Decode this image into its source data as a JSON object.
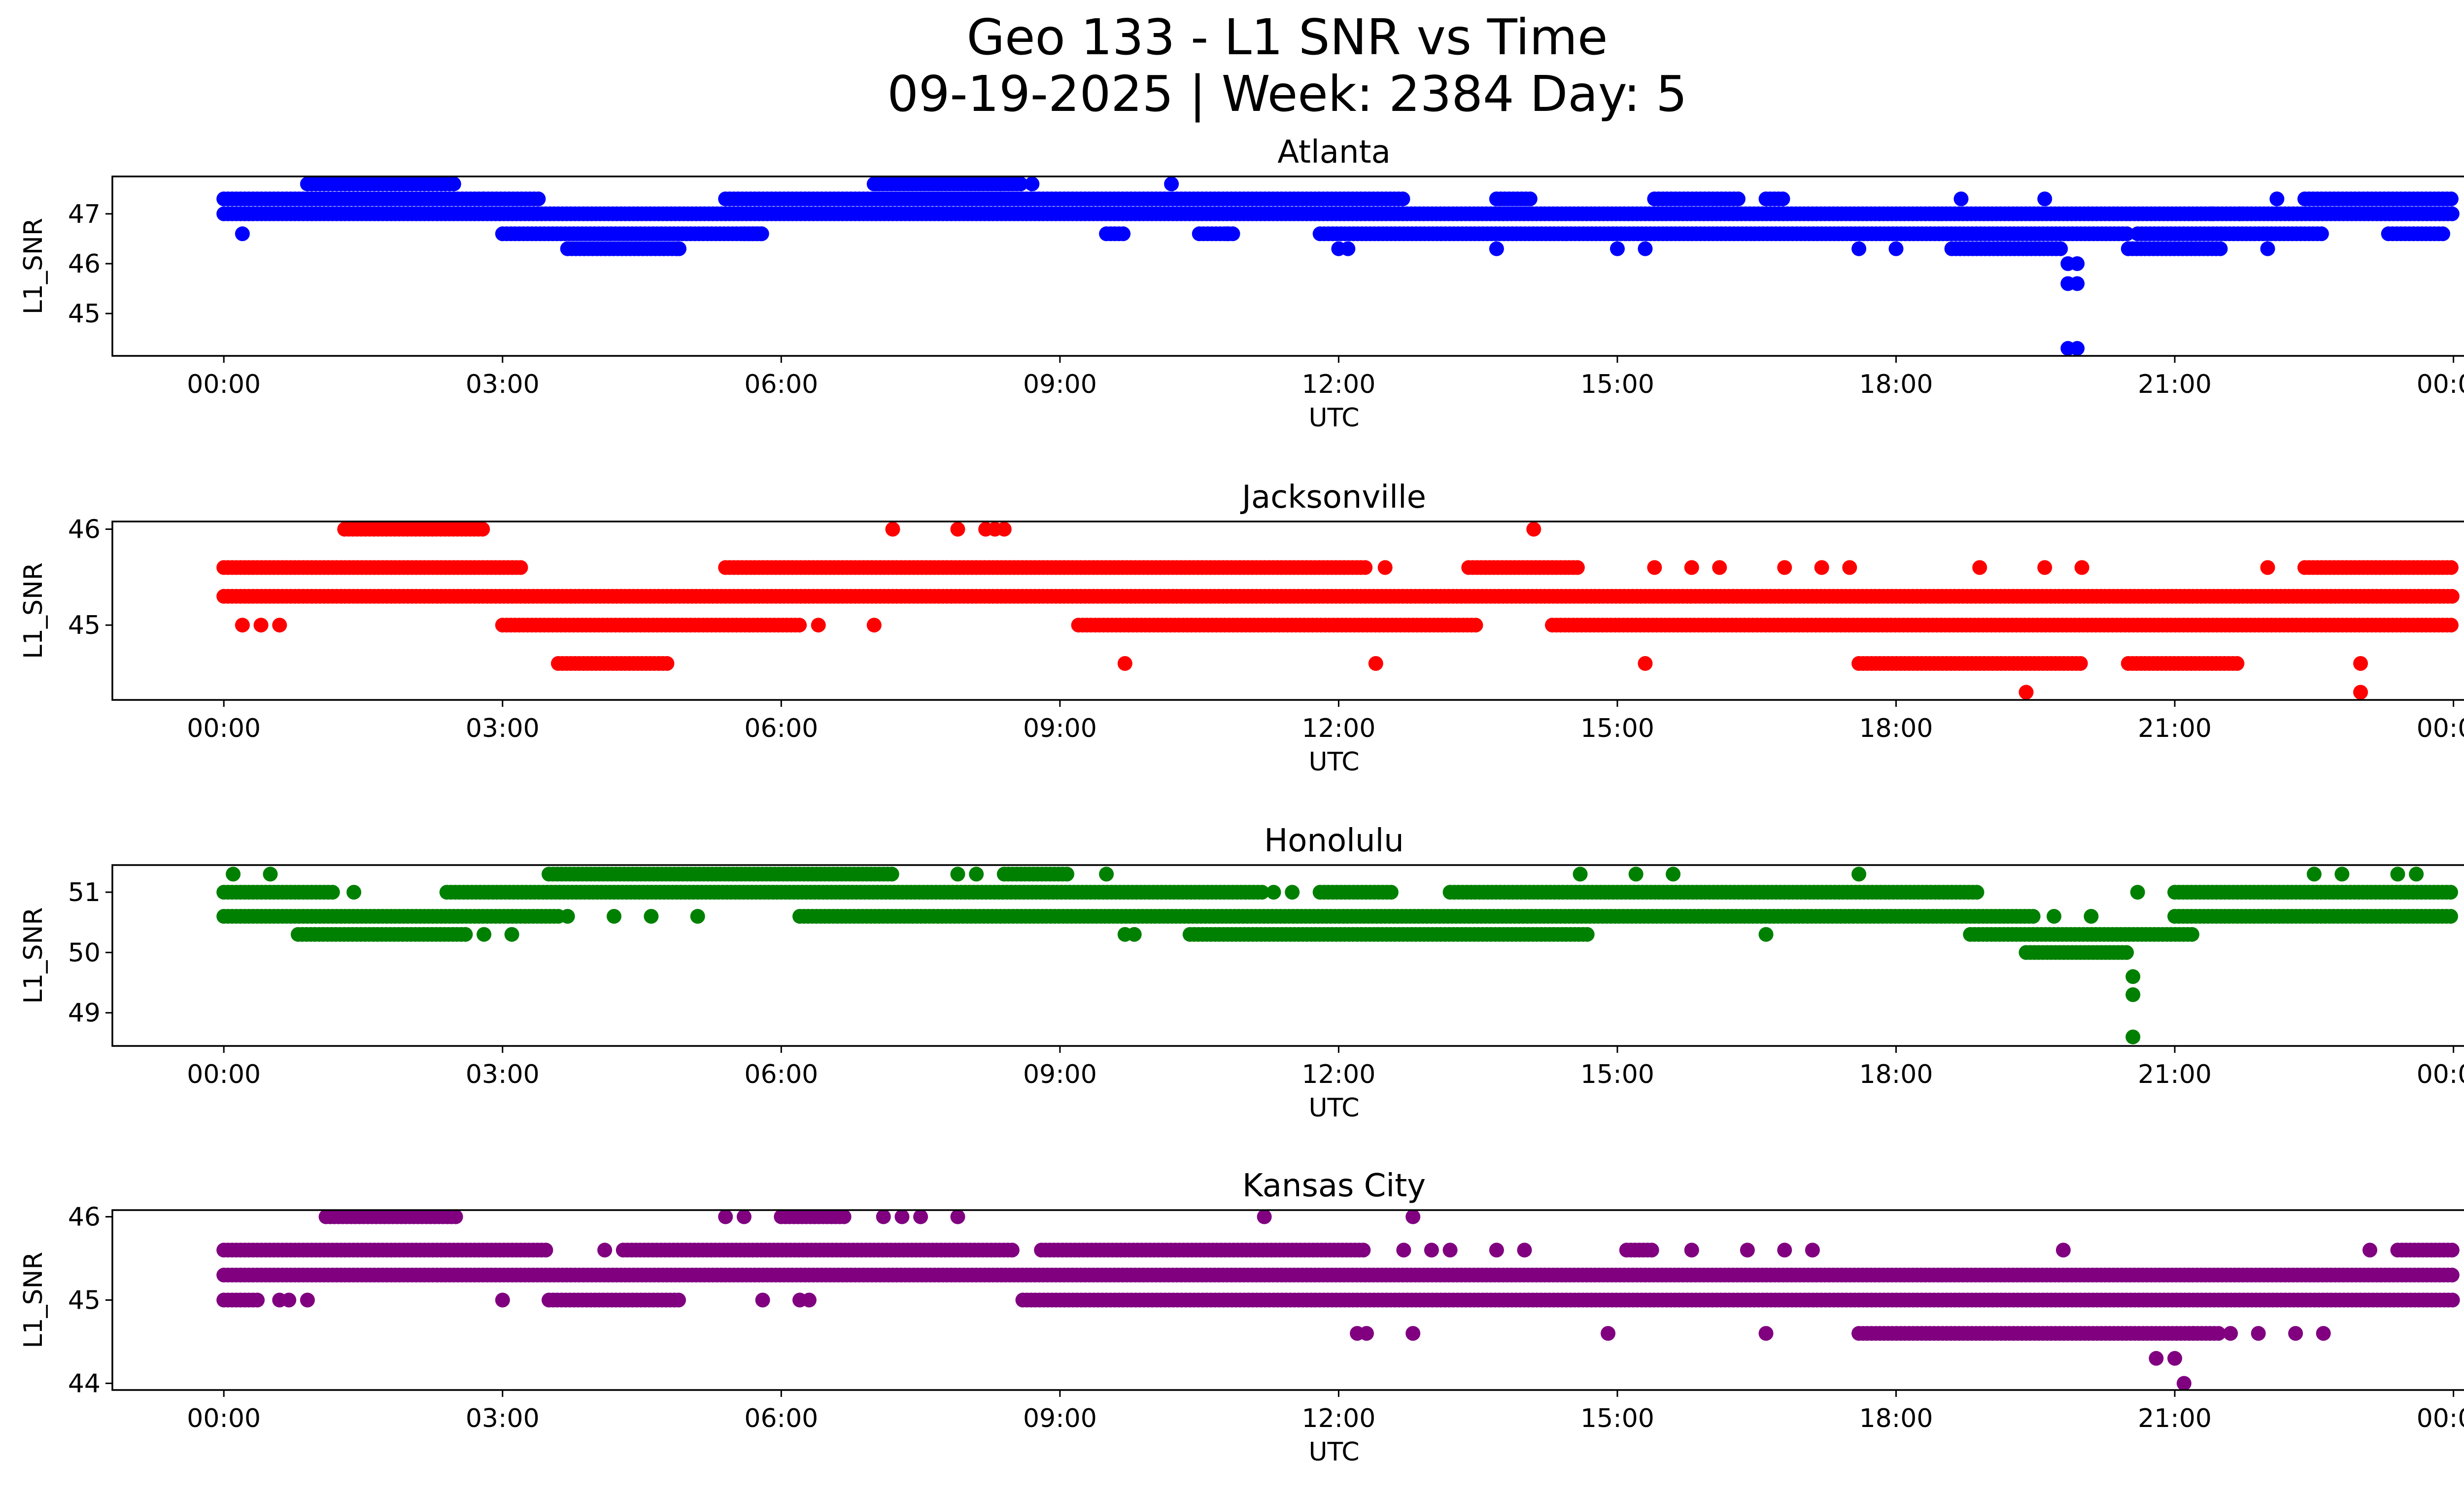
{
  "chart_data": {
    "type": "scatter",
    "suptitle": [
      "Geo 133 - L1 SNR vs Time",
      "09-19-2025 | Week: 2384 Day: 5"
    ],
    "x_ticks": [
      "00:00",
      "03:00",
      "06:00",
      "09:00",
      "12:00",
      "15:00",
      "18:00",
      "21:00",
      "00:00"
    ],
    "x_range_hours": [
      -1.2,
      25.1
    ],
    "panels": [
      {
        "title": "Atlanta",
        "color": "#0000ff",
        "xlabel": "UTC",
        "ylabel": "L1_SNR",
        "ylim": [
          44.15,
          47.75
        ],
        "yticks": [
          45,
          46,
          47
        ],
        "levels": [
          {
            "y": 47.3,
            "segments": [
              [
                0.0,
                2.8
              ],
              [
                2.8,
                3.4
              ],
              [
                5.4,
                12.7
              ],
              [
                13.7,
                14.1
              ],
              [
                15.4,
                16.3
              ],
              [
                16.6,
                16.8
              ],
              [
                22.4,
                24.0
              ]
            ]
          },
          {
            "y": 47.0,
            "segments": [
              [
                0.0,
                24.0
              ]
            ]
          },
          {
            "y": 46.6,
            "segments": [
              [
                3.0,
                5.8
              ],
              [
                5.6,
                5.8
              ],
              [
                9.5,
                9.7
              ],
              [
                10.5,
                10.9
              ],
              [
                11.8,
                20.5
              ],
              [
                20.6,
                22.6
              ],
              [
                23.3,
                23.9
              ]
            ]
          },
          {
            "y": 46.3,
            "segments": [
              [
                3.7,
                4.9
              ],
              [
                18.6,
                19.8
              ],
              [
                20.5,
                21.5
              ]
            ]
          },
          {
            "y": 47.6,
            "segments": [
              [
                0.9,
                2.5
              ],
              [
                7.0,
                8.6
              ]
            ]
          }
        ],
        "points": [
          [
            0.2,
            46.6
          ],
          [
            4.9,
            46.3
          ],
          [
            8.7,
            47.6
          ],
          [
            10.2,
            47.6
          ],
          [
            10.8,
            46.6
          ],
          [
            12.0,
            46.3
          ],
          [
            12.1,
            46.3
          ],
          [
            13.7,
            46.3
          ],
          [
            15.0,
            46.3
          ],
          [
            15.3,
            46.3
          ],
          [
            17.6,
            46.3
          ],
          [
            18.0,
            46.3
          ],
          [
            18.7,
            47.3
          ],
          [
            19.6,
            47.3
          ],
          [
            21.4,
            47.0
          ],
          [
            21.7,
            47.0
          ],
          [
            22.1,
            47.3
          ],
          [
            22.0,
            46.3
          ],
          [
            19.85,
            46.0
          ],
          [
            19.95,
            46.0
          ],
          [
            19.85,
            45.6
          ],
          [
            19.95,
            45.6
          ],
          [
            19.85,
            44.3
          ],
          [
            19.95,
            44.3
          ]
        ]
      },
      {
        "title": "Jacksonville",
        "color": "#ff0000",
        "xlabel": "UTC",
        "ylabel": "L1_SNR",
        "ylim": [
          44.22,
          46.08
        ],
        "yticks": [
          45,
          46
        ],
        "levels": [
          {
            "y": 45.6,
            "segments": [
              [
                0.0,
                3.2
              ],
              [
                5.4,
                12.3
              ],
              [
                13.4,
                14.6
              ],
              [
                22.4,
                24.0
              ]
            ]
          },
          {
            "y": 45.3,
            "segments": [
              [
                0.0,
                24.0
              ]
            ]
          },
          {
            "y": 45.0,
            "segments": [
              [
                3.0,
                6.2
              ],
              [
                9.2,
                13.5
              ],
              [
                14.3,
                24.0
              ]
            ]
          },
          {
            "y": 44.6,
            "segments": [
              [
                3.6,
                4.8
              ],
              [
                17.6,
                20.0
              ],
              [
                20.5,
                21.7
              ]
            ]
          },
          {
            "y": 46.0,
            "segments": [
              [
                1.3,
                2.8
              ]
            ]
          }
        ],
        "points": [
          [
            0.2,
            45.0
          ],
          [
            0.4,
            45.0
          ],
          [
            0.6,
            45.0
          ],
          [
            6.4,
            45.0
          ],
          [
            7.0,
            45.0
          ],
          [
            7.2,
            46.0
          ],
          [
            7.9,
            46.0
          ],
          [
            8.2,
            46.0
          ],
          [
            8.3,
            46.0
          ],
          [
            8.4,
            46.0
          ],
          [
            9.7,
            44.6
          ],
          [
            12.4,
            44.6
          ],
          [
            12.5,
            45.6
          ],
          [
            14.1,
            46.0
          ],
          [
            15.3,
            44.6
          ],
          [
            15.4,
            45.6
          ],
          [
            15.8,
            45.6
          ],
          [
            16.1,
            45.6
          ],
          [
            16.8,
            45.6
          ],
          [
            17.2,
            45.6
          ],
          [
            17.5,
            45.6
          ],
          [
            18.9,
            45.6
          ],
          [
            19.6,
            45.6
          ],
          [
            20.0,
            45.6
          ],
          [
            19.4,
            44.3
          ],
          [
            22.0,
            45.6
          ],
          [
            23.0,
            44.6
          ],
          [
            23.0,
            44.3
          ]
        ]
      },
      {
        "title": "Honolulu",
        "color": "#008000",
        "xlabel": "UTC",
        "ylabel": "L1_SNR",
        "ylim": [
          48.45,
          51.45
        ],
        "yticks": [
          49,
          50,
          51
        ],
        "levels": [
          {
            "y": 51.3,
            "segments": [
              [
                3.5,
                7.2
              ],
              [
                8.4,
                9.1
              ]
            ]
          },
          {
            "y": 51.0,
            "segments": [
              [
                0.0,
                1.2
              ],
              [
                2.4,
                11.2
              ],
              [
                11.8,
                12.6
              ],
              [
                13.2,
                18.9
              ],
              [
                21.0,
                24.0
              ]
            ]
          },
          {
            "y": 50.6,
            "segments": [
              [
                0.0,
                3.6
              ],
              [
                6.2,
                19.5
              ],
              [
                21.0,
                24.0
              ]
            ]
          },
          {
            "y": 50.3,
            "segments": [
              [
                0.8,
                2.6
              ],
              [
                10.4,
                14.7
              ],
              [
                18.8,
                21.2
              ]
            ]
          },
          {
            "y": 50.0,
            "segments": [
              [
                19.4,
                20.5
              ]
            ]
          }
        ],
        "points": [
          [
            0.1,
            51.3
          ],
          [
            0.5,
            51.3
          ],
          [
            1.4,
            51.0
          ],
          [
            2.8,
            50.3
          ],
          [
            3.1,
            50.3
          ],
          [
            3.7,
            50.6
          ],
          [
            4.2,
            50.6
          ],
          [
            4.6,
            50.6
          ],
          [
            5.1,
            50.6
          ],
          [
            7.9,
            51.3
          ],
          [
            8.1,
            51.3
          ],
          [
            9.5,
            51.3
          ],
          [
            9.7,
            50.3
          ],
          [
            9.8,
            50.3
          ],
          [
            11.3,
            51.0
          ],
          [
            11.5,
            51.0
          ],
          [
            14.6,
            51.3
          ],
          [
            15.2,
            51.3
          ],
          [
            15.6,
            51.3
          ],
          [
            16.6,
            50.3
          ],
          [
            17.6,
            51.3
          ],
          [
            19.7,
            50.6
          ],
          [
            20.1,
            50.6
          ],
          [
            20.6,
            51.0
          ],
          [
            22.5,
            51.3
          ],
          [
            22.8,
            51.3
          ],
          [
            23.4,
            51.3
          ],
          [
            23.6,
            51.3
          ],
          [
            20.55,
            49.6
          ],
          [
            20.55,
            49.3
          ],
          [
            20.55,
            48.6
          ]
        ]
      },
      {
        "title": "Kansas City",
        "color": "#800080",
        "xlabel": "UTC",
        "ylabel": "L1_SNR",
        "ylim": [
          43.92,
          46.08
        ],
        "yticks": [
          44,
          45,
          46
        ],
        "levels": [
          {
            "y": 45.6,
            "segments": [
              [
                0.0,
                3.5
              ],
              [
                4.3,
                8.5
              ],
              [
                8.8,
                12.3
              ],
              [
                15.1,
                15.4
              ],
              [
                23.4,
                24.0
              ]
            ]
          },
          {
            "y": 45.3,
            "segments": [
              [
                0.0,
                24.0
              ]
            ]
          },
          {
            "y": 45.0,
            "segments": [
              [
                0.0,
                0.4
              ],
              [
                3.5,
                4.9
              ],
              [
                8.6,
                24.0
              ]
            ]
          },
          {
            "y": 44.6,
            "segments": [
              [
                17.6,
                21.5
              ]
            ]
          },
          {
            "y": 46.0,
            "segments": [
              [
                1.1,
                2.5
              ],
              [
                6.0,
                6.7
              ]
            ]
          }
        ],
        "points": [
          [
            0.6,
            45.0
          ],
          [
            0.7,
            45.0
          ],
          [
            0.9,
            45.0
          ],
          [
            3.0,
            45.0
          ],
          [
            4.1,
            45.6
          ],
          [
            5.4,
            46.0
          ],
          [
            5.6,
            46.0
          ],
          [
            5.8,
            45.0
          ],
          [
            6.2,
            45.0
          ],
          [
            6.3,
            45.0
          ],
          [
            7.1,
            46.0
          ],
          [
            7.3,
            46.0
          ],
          [
            7.5,
            46.0
          ],
          [
            7.9,
            46.0
          ],
          [
            11.2,
            46.0
          ],
          [
            12.8,
            46.0
          ],
          [
            12.2,
            44.6
          ],
          [
            12.3,
            44.6
          ],
          [
            12.8,
            44.6
          ],
          [
            12.7,
            45.6
          ],
          [
            13.0,
            45.6
          ],
          [
            13.2,
            45.6
          ],
          [
            13.7,
            45.6
          ],
          [
            14.0,
            45.6
          ],
          [
            14.9,
            44.6
          ],
          [
            15.8,
            45.6
          ],
          [
            16.4,
            45.6
          ],
          [
            16.6,
            44.6
          ],
          [
            16.8,
            45.6
          ],
          [
            17.1,
            45.6
          ],
          [
            19.8,
            45.6
          ],
          [
            21.2,
            44.6
          ],
          [
            21.6,
            44.6
          ],
          [
            21.9,
            44.6
          ],
          [
            22.3,
            44.6
          ],
          [
            22.6,
            44.6
          ],
          [
            23.1,
            45.6
          ],
          [
            20.8,
            44.3
          ],
          [
            21.0,
            44.3
          ],
          [
            21.1,
            44.0
          ]
        ]
      }
    ]
  }
}
